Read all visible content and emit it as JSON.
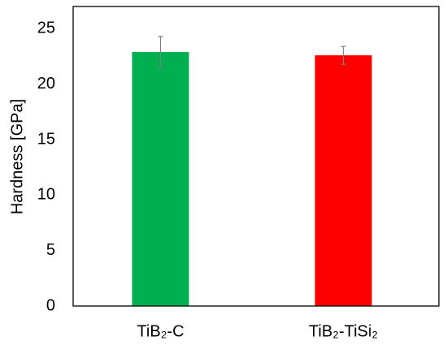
{
  "chart_data": {
    "type": "bar",
    "y_label": "Hardness [GPa]",
    "categories": [
      "TiB₂-C",
      "TiB₂-TiSi₂"
    ],
    "values": [
      22.9,
      22.6
    ],
    "errors": [
      1.4,
      0.8
    ],
    "colors": [
      "#00b050",
      "#ff0000"
    ],
    "error_color": "#7f7f7f",
    "ylim": [
      0,
      27
    ],
    "yticks": [
      0,
      5,
      10,
      15,
      20,
      25
    ],
    "grid": false
  }
}
